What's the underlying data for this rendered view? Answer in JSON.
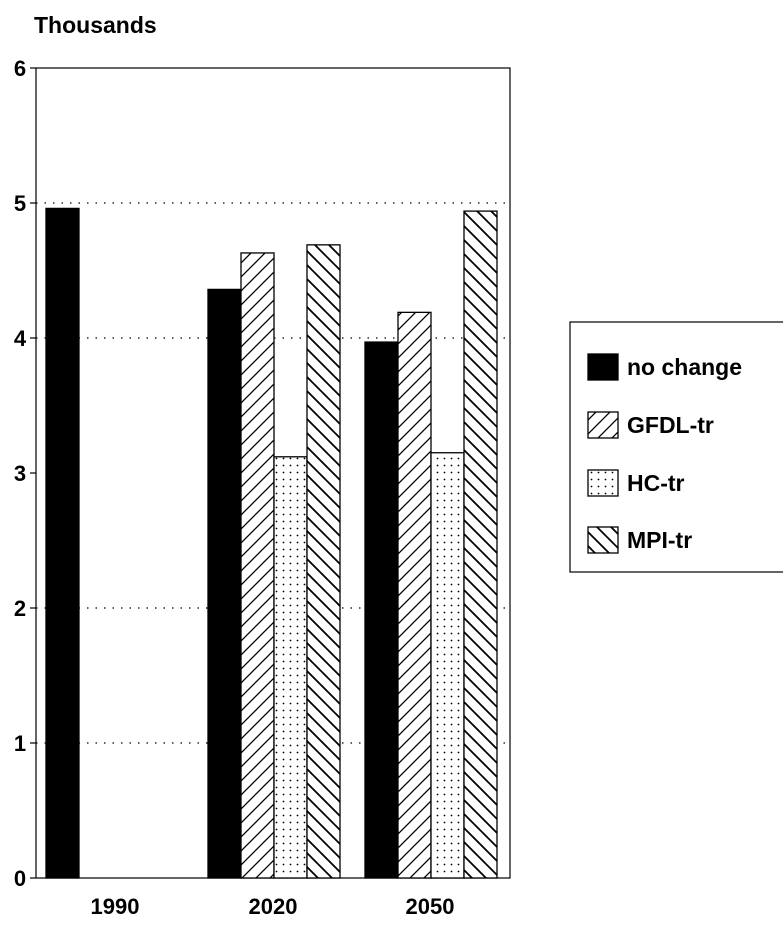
{
  "chart_data": {
    "type": "bar",
    "ylabel": "Thousands",
    "ylim": [
      0,
      6
    ],
    "yticks": [
      "0",
      "1",
      "2",
      "3",
      "4",
      "5",
      "6"
    ],
    "grid": "dotted horizontal at 1, 2, 4, 5",
    "categories": [
      "1990",
      "2020",
      "2050"
    ],
    "series": [
      {
        "name": "no change",
        "pattern": "solid",
        "values": [
          4.96,
          4.36,
          3.97
        ]
      },
      {
        "name": "GFDL-tr",
        "pattern": "forward-hatch",
        "values": [
          0,
          4.63,
          4.19
        ]
      },
      {
        "name": "HC-tr",
        "pattern": "dots",
        "values": [
          0,
          3.12,
          3.15
        ]
      },
      {
        "name": "MPI-tr",
        "pattern": "back-hatch",
        "values": [
          0,
          4.69,
          4.94
        ]
      }
    ],
    "legend_position": "right",
    "colors": {
      "bar_fill": "#000000",
      "background": "#ffffff",
      "stroke": "#000000"
    }
  }
}
